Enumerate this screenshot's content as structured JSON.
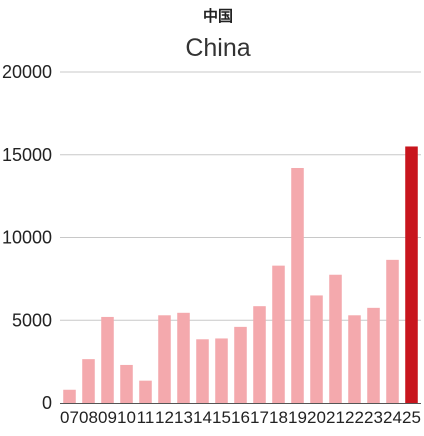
{
  "chart_data": {
    "type": "bar",
    "title": "中国",
    "subtitle": "China",
    "xlabel": "",
    "ylabel": "",
    "categories": [
      "07",
      "08",
      "09",
      "10",
      "11",
      "12",
      "13",
      "14",
      "15",
      "16",
      "17",
      "18",
      "19",
      "20",
      "21",
      "22",
      "23",
      "24",
      "25"
    ],
    "values": [
      800,
      2650,
      5200,
      2300,
      1350,
      5300,
      5450,
      3850,
      3900,
      4600,
      5850,
      8300,
      14200,
      6500,
      7750,
      5300,
      5750,
      8650,
      15500
    ],
    "ylim": [
      0,
      20000
    ],
    "yticks": [
      0,
      5000,
      10000,
      15000,
      20000
    ],
    "ytick_labels": [
      "0",
      "5000",
      "10000",
      "15000",
      "20000"
    ],
    "grid": true,
    "legend": "none",
    "colors": {
      "bar": "#f4a9ad",
      "highlight_bar": "#c8151d",
      "grid": "#c8c8c8",
      "axis": "#555555"
    },
    "highlight_index": 18
  }
}
